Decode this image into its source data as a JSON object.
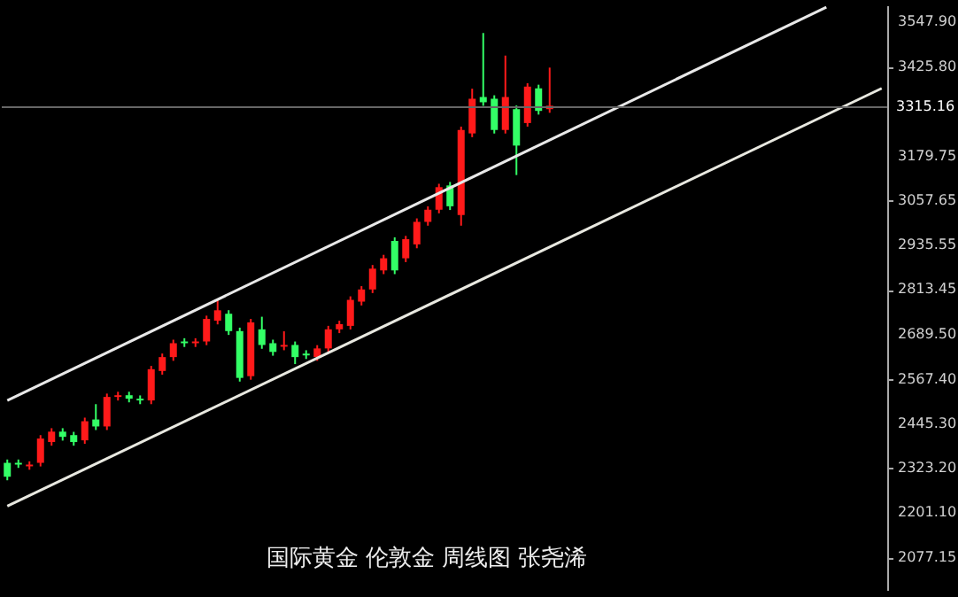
{
  "chart_data": {
    "type": "candlestick",
    "categories": [
      null,
      null,
      null,
      null,
      null,
      null,
      null,
      null,
      null,
      null,
      null,
      null,
      null,
      null,
      null,
      null,
      null,
      null,
      null,
      null,
      null,
      null,
      null,
      null,
      null,
      null,
      null,
      null,
      null,
      null,
      null,
      null,
      null,
      null,
      null,
      null,
      null,
      null,
      null,
      null,
      null,
      null,
      null,
      null,
      null,
      null,
      null,
      null,
      null,
      null,
      null,
      null,
      null,
      null,
      null,
      null,
      null,
      null,
      null,
      null,
      null,
      null,
      null,
      null,
      null,
      null,
      null,
      null,
      null,
      null,
      null,
      null,
      null,
      null,
      null,
      null,
      null,
      null,
      null,
      null
    ],
    "ohlc": [
      [
        2338.9,
        2348,
        2291,
        2300.8
      ],
      [
        2338.9,
        2348,
        2325,
        2334.1
      ],
      [
        2329.3,
        2343,
        2320,
        2334.1
      ],
      [
        2338.9,
        2415,
        2329,
        2405.5
      ],
      [
        2396.0,
        2434,
        2386,
        2424.5
      ],
      [
        2424.5,
        2434,
        2400,
        2410.2
      ],
      [
        2415.0,
        2424,
        2386,
        2396.0
      ],
      [
        2400.7,
        2463,
        2391,
        2453.1
      ],
      [
        2457.9,
        2500,
        2429,
        2438.8
      ],
      [
        2438.8,
        2529,
        2429,
        2519.8
      ],
      [
        2519.8,
        2534,
        2510,
        2524.5
      ],
      [
        2524.5,
        2534,
        2505,
        2515.0
      ],
      [
        2515.0,
        2524,
        2500,
        2510.2
      ],
      [
        2510.2,
        2605,
        2500,
        2595.9
      ],
      [
        2591.1,
        2639,
        2581,
        2629.2
      ],
      [
        2629.2,
        2677,
        2619,
        2667.3
      ],
      [
        2672.1,
        2681,
        2657,
        2667.3
      ],
      [
        2667.3,
        2681,
        2657,
        2672.1
      ],
      [
        2672.1,
        2743,
        2662,
        2733.9
      ],
      [
        2729.2,
        2790,
        2719,
        2757.7
      ],
      [
        2748.2,
        2758,
        2690,
        2700.6
      ],
      [
        2700.6,
        2710,
        2562,
        2572.1
      ],
      [
        2576.9,
        2734,
        2567,
        2724.4
      ],
      [
        2705.4,
        2740,
        2652,
        2662.5
      ],
      [
        2667.3,
        2677,
        2633,
        2643.5
      ],
      [
        2657.8,
        2700,
        2648,
        2662.5
      ],
      [
        2662.5,
        2672,
        2610,
        2629.2
      ],
      [
        2638.7,
        2648,
        2624,
        2633.9
      ],
      [
        2629.2,
        2662,
        2619,
        2653.0
      ],
      [
        2653.0,
        2715,
        2643,
        2705.4
      ],
      [
        2705.4,
        2729,
        2695,
        2719.7
      ],
      [
        2714.9,
        2796,
        2705,
        2786.3
      ],
      [
        2781.5,
        2824,
        2771,
        2814.9
      ],
      [
        2814.9,
        2882,
        2805,
        2872.0
      ],
      [
        2867.2,
        2910,
        2857,
        2900.5
      ],
      [
        2948.1,
        2958,
        2857,
        2867.2
      ],
      [
        2900.5,
        2962,
        2890,
        2952.9
      ],
      [
        2938.6,
        3010,
        2928,
        3000.5
      ],
      [
        3000.5,
        3043,
        2990,
        3033.8
      ],
      [
        3033.8,
        3105,
        3024,
        3095.7
      ],
      [
        3100.5,
        3110,
        3033,
        3043.3
      ],
      [
        3019.5,
        3262,
        2990,
        3252.8
      ],
      [
        3243.3,
        3366,
        3233,
        3338.5
      ],
      [
        3343.2,
        3519,
        3319,
        3328.9
      ],
      [
        3338.5,
        3348,
        3243,
        3252.8
      ],
      [
        3252.8,
        3457,
        3243,
        3343.2
      ],
      [
        3309.9,
        3320,
        3129,
        3209.9
      ],
      [
        3271.8,
        3381,
        3262,
        3371.8
      ],
      [
        3367.0,
        3377,
        3295,
        3305.1
      ],
      [
        3309.9,
        3424,
        3300,
        3319.4
      ],
      null,
      null,
      null,
      null,
      null,
      null,
      null,
      null,
      null,
      null,
      null,
      null,
      null,
      null,
      null,
      null,
      null,
      null,
      null,
      null,
      null,
      null,
      null,
      null,
      null,
      null,
      null,
      null,
      null,
      null
    ],
    "colors": [
      "#33ff66",
      "#33ff66",
      "#ff1a1a",
      "#ff1a1a",
      "#ff1a1a",
      "#33ff66",
      "#33ff66",
      "#ff1a1a",
      "#33ff66",
      "#ff1a1a",
      "#ff1a1a",
      "#33ff66",
      "#33ff66",
      "#ff1a1a",
      "#ff1a1a",
      "#ff1a1a",
      "#33ff66",
      "#ff1a1a",
      "#ff1a1a",
      "#ff1a1a",
      "#33ff66",
      "#33ff66",
      "#ff1a1a",
      "#33ff66",
      "#33ff66",
      "#ff1a1a",
      "#33ff66",
      "#33ff66",
      "#ff1a1a",
      "#ff1a1a",
      "#ff1a1a",
      "#ff1a1a",
      "#ff1a1a",
      "#ff1a1a",
      "#ff1a1a",
      "#33ff66",
      "#ff1a1a",
      "#ff1a1a",
      "#ff1a1a",
      "#ff1a1a",
      "#33ff66",
      "#ff1a1a",
      "#ff1a1a",
      "#33ff66",
      "#33ff66",
      "#ff1a1a",
      "#33ff66",
      "#ff1a1a",
      "#33ff66",
      "#ff1a1a",
      null,
      null,
      null,
      null,
      null,
      null,
      null,
      null,
      null,
      null,
      null,
      null,
      null,
      null,
      null,
      null,
      null,
      null,
      null,
      null,
      null,
      null,
      null,
      null,
      null,
      null,
      null,
      null,
      null,
      null
    ],
    "series": [
      {
        "type": "line",
        "values": [
          2510,
          null,
          null,
          null,
          null,
          null,
          null,
          null,
          null,
          null,
          null,
          null,
          null,
          null,
          null,
          null,
          null,
          null,
          null,
          null,
          null,
          null,
          null,
          null,
          null,
          null,
          null,
          null,
          null,
          null,
          null,
          null,
          null,
          null,
          null,
          null,
          null,
          null,
          null,
          null,
          null,
          null,
          null,
          null,
          null,
          null,
          null,
          null,
          null,
          null,
          null,
          null,
          null,
          null,
          null,
          null,
          null,
          null,
          null,
          null,
          null,
          null,
          null,
          null,
          null,
          null,
          null,
          null,
          null,
          null,
          null,
          null,
          null,
          null,
          3590,
          null,
          null,
          null,
          null,
          null
        ],
        "color": "#e8e8e8"
      },
      {
        "type": "line",
        "values": [
          2220,
          null,
          null,
          null,
          null,
          null,
          null,
          null,
          null,
          null,
          null,
          null,
          null,
          null,
          null,
          null,
          null,
          null,
          null,
          null,
          null,
          null,
          null,
          null,
          null,
          null,
          null,
          null,
          null,
          null,
          null,
          null,
          null,
          null,
          null,
          null,
          null,
          null,
          null,
          null,
          null,
          null,
          null,
          null,
          null,
          null,
          null,
          null,
          null,
          null,
          null,
          null,
          null,
          null,
          null,
          null,
          null,
          null,
          null,
          null,
          null,
          null,
          null,
          null,
          null,
          null,
          null,
          null,
          null,
          null,
          null,
          null,
          null,
          null,
          null,
          null,
          null,
          null,
          null,
          3367
        ],
        "color": "#e8e8e0"
      }
    ],
    "ylim": [
      1990,
      3595
    ],
    "yticks": [
      {
        "value": 2077.15,
        "label": "2077.15"
      },
      {
        "value": 2201.1,
        "label": "2201.10"
      },
      {
        "value": 2323.2,
        "label": "2323.20"
      },
      {
        "value": 2445.3,
        "label": "2445.30"
      },
      {
        "value": 2567.4,
        "label": "2567.40"
      },
      {
        "value": 2689.5,
        "label": "2689.50"
      },
      {
        "value": 2813.45,
        "label": "2813.45"
      },
      {
        "value": 2935.55,
        "label": "2935.55"
      },
      {
        "value": 3057.65,
        "label": "3057.65"
      },
      {
        "value": 3179.75,
        "label": "3179.75"
      },
      {
        "value": 3425.8,
        "label": "3425.80"
      },
      {
        "value": 3547.9,
        "label": "3547.90"
      }
    ],
    "ref_lines": [
      {
        "axis": "y",
        "value": 3315.16,
        "label": "3315.16",
        "color": "#666666"
      }
    ],
    "annotations": [
      "国际黄金 伦敦金 周线图 张尧浠"
    ],
    "tick_labels": "y",
    "grid": false
  }
}
